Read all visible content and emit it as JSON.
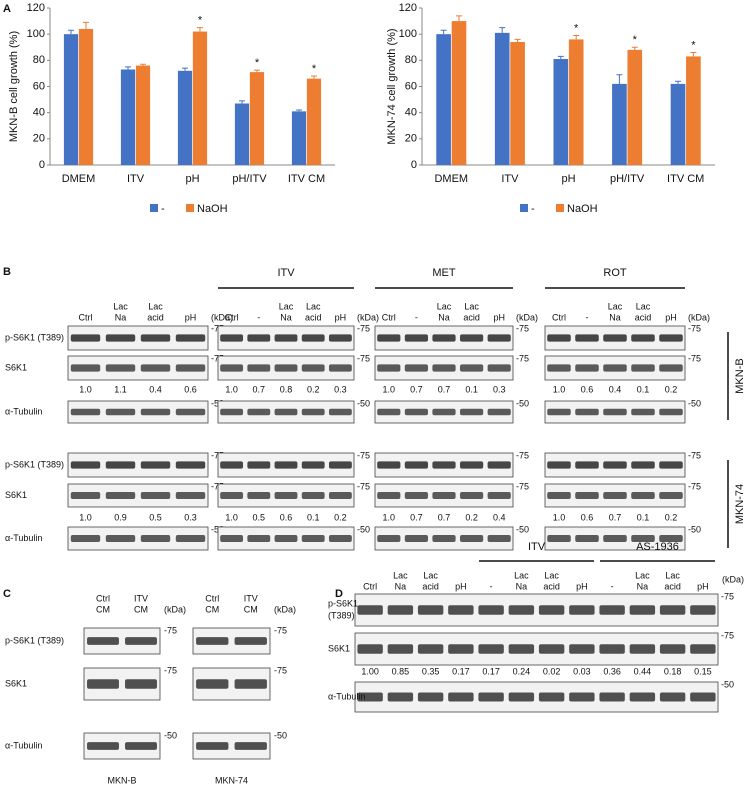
{
  "panel_a": {
    "label": "A"
  },
  "chart_data": [
    {
      "type": "bar",
      "ylabel": "MKN-B cell growth (%)",
      "categories": [
        "DMEM",
        "ITV",
        "pH",
        "pH/ITV",
        "ITV CM"
      ],
      "series": [
        {
          "name": "-",
          "color": "#4472c4",
          "values": [
            100,
            73,
            72,
            47,
            41
          ],
          "errors": [
            3,
            2,
            2,
            2,
            1
          ]
        },
        {
          "name": "NaOH",
          "color": "#ed7d31",
          "values": [
            104,
            76,
            102,
            71,
            66
          ],
          "errors": [
            5,
            1,
            3,
            1.5,
            2
          ],
          "annotations": [
            null,
            null,
            "*",
            "*",
            "*"
          ]
        }
      ],
      "ylim": [
        0,
        120
      ],
      "yticks": [
        0,
        20,
        40,
        60,
        80,
        100,
        120
      ],
      "legend": "bottom"
    },
    {
      "type": "bar",
      "ylabel": "MKN-74 cell growth (%)",
      "categories": [
        "DMEM",
        "ITV",
        "pH",
        "pH/ITV",
        "ITV CM"
      ],
      "series": [
        {
          "name": "-",
          "color": "#4472c4",
          "values": [
            100,
            101,
            81,
            62,
            62
          ],
          "errors": [
            3,
            4,
            2,
            7,
            2
          ]
        },
        {
          "name": "NaOH",
          "color": "#ed7d31",
          "values": [
            110,
            94,
            96,
            88,
            83
          ],
          "errors": [
            4,
            2,
            3,
            2,
            3
          ],
          "annotations": [
            null,
            null,
            "*",
            "*",
            "*"
          ]
        }
      ],
      "ylim": [
        0,
        120
      ],
      "yticks": [
        0,
        20,
        40,
        60,
        80,
        100,
        120
      ],
      "legend": "bottom"
    }
  ],
  "panel_b": {
    "label": "B",
    "kda": "(kDa)",
    "row_labels": [
      [
        "p-S6K1 (T389)"
      ],
      [
        "S6K1"
      ],
      [
        "α-Tubulin"
      ]
    ],
    "markers": [
      "-75",
      "-75",
      "-50"
    ],
    "cell_lines": [
      "MKN-B",
      "MKN-74"
    ],
    "blots": [
      {
        "lanes": [
          [
            "Ctrl"
          ],
          [
            "Lac",
            "Na"
          ],
          [
            "Lac",
            "acid"
          ],
          [
            "pH"
          ]
        ],
        "quant": [
          [
            "1.0",
            "1.1",
            "0.4",
            "0.6"
          ],
          [
            "1.0",
            "0.9",
            "0.5",
            "0.3"
          ]
        ]
      },
      {
        "header": "ITV",
        "lanes": [
          [
            "Ctrl"
          ],
          [
            "-"
          ],
          [
            "Lac",
            "Na"
          ],
          [
            "Lac",
            "acid"
          ],
          [
            "pH"
          ]
        ],
        "quant": [
          [
            "1.0",
            "0.7",
            "0.8",
            "0.2",
            "0.3"
          ],
          [
            "1.0",
            "0.5",
            "0.6",
            "0.1",
            "0.2"
          ]
        ]
      },
      {
        "header": "MET",
        "lanes": [
          [
            "Ctrl"
          ],
          [
            "-"
          ],
          [
            "Lac",
            "Na"
          ],
          [
            "Lac",
            "acid"
          ],
          [
            "pH"
          ]
        ],
        "quant": [
          [
            "1.0",
            "0.7",
            "0.7",
            "0.1",
            "0.3"
          ],
          [
            "1.0",
            "0.7",
            "0.7",
            "0.2",
            "0.4"
          ]
        ]
      },
      {
        "header": "ROT",
        "lanes": [
          [
            "Ctrl"
          ],
          [
            "-"
          ],
          [
            "Lac",
            "Na"
          ],
          [
            "Lac",
            "acid"
          ],
          [
            "pH"
          ]
        ],
        "quant": [
          [
            "1.0",
            "0.6",
            "0.4",
            "0.1",
            "0.2"
          ],
          [
            "1.0",
            "0.6",
            "0.7",
            "0.1",
            "0.2"
          ]
        ]
      }
    ]
  },
  "panel_c": {
    "label": "C",
    "kda": "(kDa)",
    "row_labels": [
      [
        "p-S6K1 (T389)"
      ],
      [
        "S6K1"
      ],
      [
        "α-Tubulin"
      ]
    ],
    "markers": [
      "-75",
      "-75",
      "-50"
    ],
    "blots": [
      {
        "lanes": [
          [
            "Ctrl",
            "CM"
          ],
          [
            "ITV",
            "CM"
          ]
        ],
        "cell_line": "MKN-B"
      },
      {
        "lanes": [
          [
            "Ctrl",
            "CM"
          ],
          [
            "ITV",
            "CM"
          ]
        ],
        "cell_line": "MKN-74"
      }
    ]
  },
  "panel_d": {
    "label": "D",
    "kda": "(kDa)",
    "row_labels": [
      [
        "p-S6K1",
        "(T389)"
      ],
      [
        "S6K1"
      ],
      [
        "α-Tubulin"
      ]
    ],
    "markers": [
      "-75",
      "-75",
      "-50"
    ],
    "lane_groups": [
      {
        "lanes": [
          [
            "Ctrl"
          ],
          [
            "Lac",
            "Na"
          ],
          [
            "Lac",
            "acid"
          ],
          [
            "pH"
          ]
        ]
      },
      {
        "header": "ITV",
        "lanes": [
          [
            "-"
          ],
          [
            "Lac",
            "Na"
          ],
          [
            "Lac",
            "acid"
          ],
          [
            "pH"
          ]
        ]
      },
      {
        "header": "AS-1936",
        "lanes": [
          [
            "-"
          ],
          [
            "Lac",
            "Na"
          ],
          [
            "Lac",
            "acid"
          ],
          [
            "pH"
          ]
        ]
      }
    ],
    "quant": [
      "1.00",
      "0.85",
      "0.35",
      "0.17",
      "0.17",
      "0.24",
      "0.02",
      "0.03",
      "0.36",
      "0.44",
      "0.18",
      "0.15"
    ]
  }
}
